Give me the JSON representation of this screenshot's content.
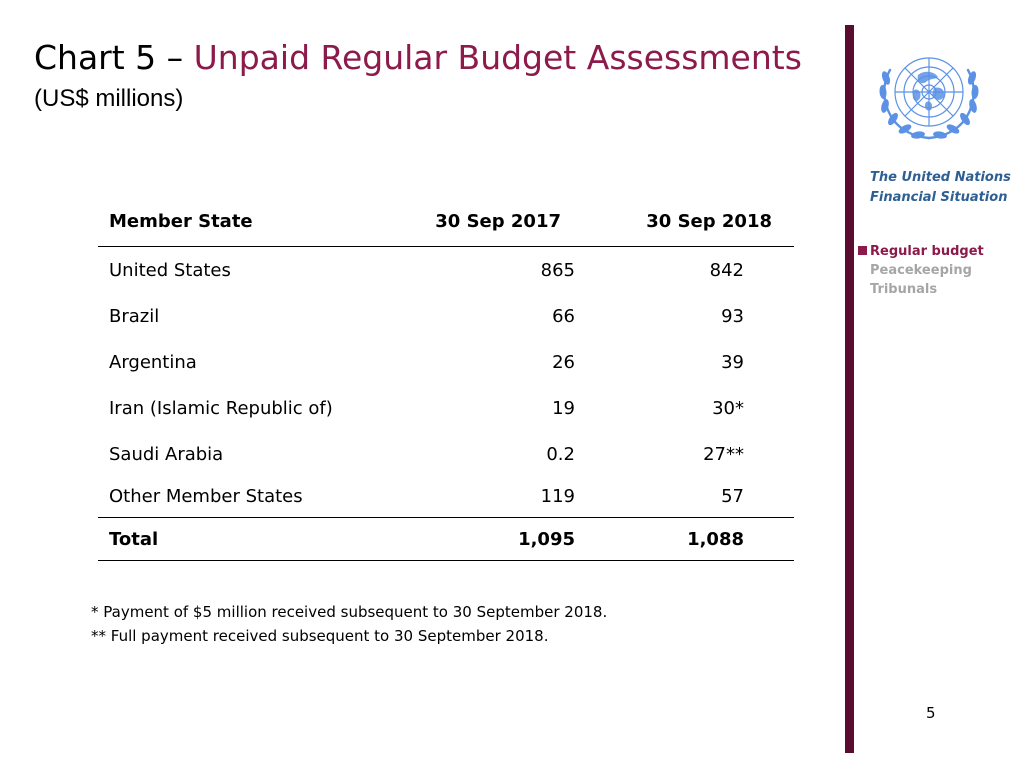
{
  "title": {
    "prefix": "Chart 5 – ",
    "main": "Unpaid Regular Budget Assessments",
    "subtitle": "(US$ millions)"
  },
  "sidebar": {
    "title_line1": "The United Nations",
    "title_line2": "Financial Situation",
    "items": [
      {
        "label": "Regular budget",
        "active": true
      },
      {
        "label": "Peacekeeping",
        "active": false
      },
      {
        "label": "Tribunals",
        "active": false
      }
    ]
  },
  "table": {
    "headers": [
      "Member State",
      "30 Sep 2017",
      "30 Sep 2018"
    ],
    "rows": [
      {
        "name": "United States",
        "y2017": "865",
        "y2018": "842"
      },
      {
        "name": "Brazil",
        "y2017": "66",
        "y2018": "93"
      },
      {
        "name": "Argentina",
        "y2017": "26",
        "y2018": "39"
      },
      {
        "name": "Iran (Islamic Republic of)",
        "y2017": "19",
        "y2018": "30*"
      },
      {
        "name": "Saudi Arabia",
        "y2017": "0.2",
        "y2018": "27**"
      },
      {
        "name": "Other Member States",
        "y2017": "119",
        "y2018": "57"
      }
    ],
    "total": {
      "name": "Total",
      "y2017": "1,095",
      "y2018": "1,088"
    }
  },
  "footnotes": [
    {
      "mark": "*",
      "text": " Payment of $5 million received subsequent to 30 September 2018."
    },
    {
      "mark": "**",
      "text": " Full payment received subsequent to 30 September 2018."
    }
  ],
  "page_number": "5",
  "colors": {
    "accent": "#8c1a4b",
    "bar": "#5a0d2e",
    "sidebar_title": "#2d5f93",
    "inactive": "#a6a6a6",
    "logo": "#5b92e5"
  },
  "logo_icon": "un-emblem-icon"
}
